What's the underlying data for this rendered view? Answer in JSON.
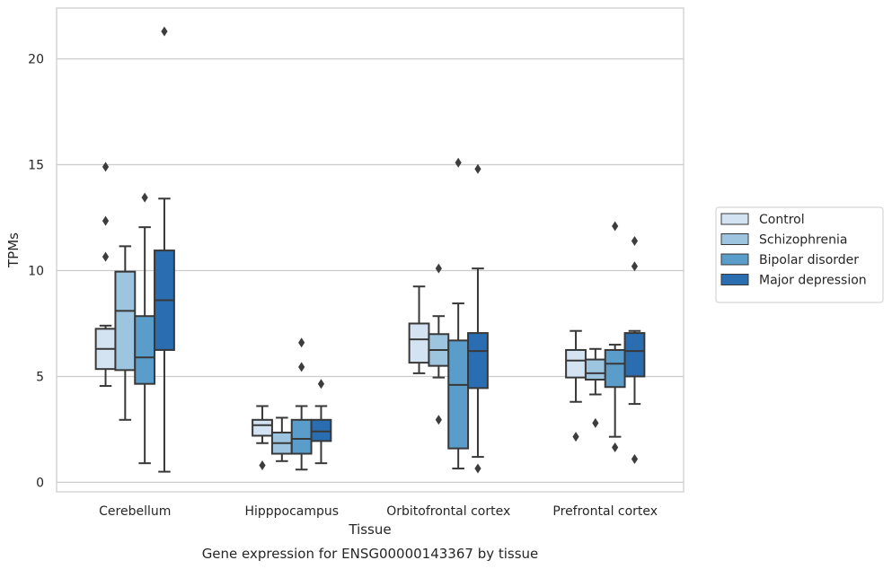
{
  "chart_data": {
    "type": "boxplot",
    "title": "",
    "caption": "Gene expression for ENSG00000143367 by tissue",
    "xlabel": "Tissue",
    "ylabel": "TPMs",
    "ylim": [
      -0.45,
      22.4
    ],
    "yticks": [
      0,
      5,
      10,
      15,
      20
    ],
    "grid": "horizontal",
    "legend_position": "right",
    "categories": [
      "Cerebellum",
      "Hipppocampus",
      "Orbitofrontal cortex",
      "Prefrontal cortex"
    ],
    "series": [
      {
        "name": "Control",
        "color": "#d4e3f2",
        "boxes": [
          {
            "q1": 5.35,
            "median": 6.3,
            "q3": 7.25,
            "whisker_low": 4.55,
            "whisker_high": 7.4,
            "outliers": [
              10.65,
              12.35,
              14.9
            ]
          },
          {
            "q1": 2.2,
            "median": 2.7,
            "q3": 2.95,
            "whisker_low": 1.85,
            "whisker_high": 3.6,
            "outliers": [
              0.8
            ]
          },
          {
            "q1": 5.65,
            "median": 6.75,
            "q3": 7.5,
            "whisker_low": 5.15,
            "whisker_high": 9.25,
            "outliers": []
          },
          {
            "q1": 4.95,
            "median": 5.75,
            "q3": 6.25,
            "whisker_low": 3.8,
            "whisker_high": 7.15,
            "outliers": [
              2.15
            ]
          }
        ]
      },
      {
        "name": "Schizophrenia",
        "color": "#9ec5e0",
        "boxes": [
          {
            "q1": 5.3,
            "median": 8.1,
            "q3": 9.95,
            "whisker_low": 2.95,
            "whisker_high": 11.15,
            "outliers": []
          },
          {
            "q1": 1.35,
            "median": 1.85,
            "q3": 2.35,
            "whisker_low": 1.0,
            "whisker_high": 3.05,
            "outliers": []
          },
          {
            "q1": 5.5,
            "median": 6.25,
            "q3": 7.0,
            "whisker_low": 4.95,
            "whisker_high": 7.85,
            "outliers": [
              2.95,
              10.1
            ]
          },
          {
            "q1": 4.85,
            "median": 5.15,
            "q3": 5.8,
            "whisker_low": 4.15,
            "whisker_high": 6.3,
            "outliers": [
              2.8
            ]
          }
        ]
      },
      {
        "name": "Bipolar disorder",
        "color": "#5b9dca",
        "boxes": [
          {
            "q1": 4.65,
            "median": 5.9,
            "q3": 7.85,
            "whisker_low": 0.9,
            "whisker_high": 12.05,
            "outliers": [
              13.45
            ]
          },
          {
            "q1": 1.35,
            "median": 2.05,
            "q3": 2.95,
            "whisker_low": 0.6,
            "whisker_high": 3.6,
            "outliers": [
              5.45,
              6.6
            ]
          },
          {
            "q1": 1.6,
            "median": 4.6,
            "q3": 6.7,
            "whisker_low": 0.65,
            "whisker_high": 8.45,
            "outliers": [
              15.1
            ]
          },
          {
            "q1": 4.5,
            "median": 5.6,
            "q3": 6.25,
            "whisker_low": 2.15,
            "whisker_high": 6.5,
            "outliers": [
              1.65,
              12.1
            ]
          }
        ]
      },
      {
        "name": "Major depression",
        "color": "#2a6db0",
        "boxes": [
          {
            "q1": 6.25,
            "median": 8.6,
            "q3": 10.95,
            "whisker_low": 0.5,
            "whisker_high": 13.4,
            "outliers": [
              21.3
            ]
          },
          {
            "q1": 1.95,
            "median": 2.4,
            "q3": 2.95,
            "whisker_low": 0.9,
            "whisker_high": 3.6,
            "outliers": [
              4.65
            ]
          },
          {
            "q1": 4.45,
            "median": 6.2,
            "q3": 7.05,
            "whisker_low": 1.2,
            "whisker_high": 10.1,
            "outliers": [
              0.65,
              14.8
            ]
          },
          {
            "q1": 5.0,
            "median": 6.2,
            "q3": 7.05,
            "whisker_low": 3.7,
            "whisker_high": 7.15,
            "outliers": [
              1.1,
              10.2,
              11.4
            ]
          }
        ]
      }
    ]
  }
}
